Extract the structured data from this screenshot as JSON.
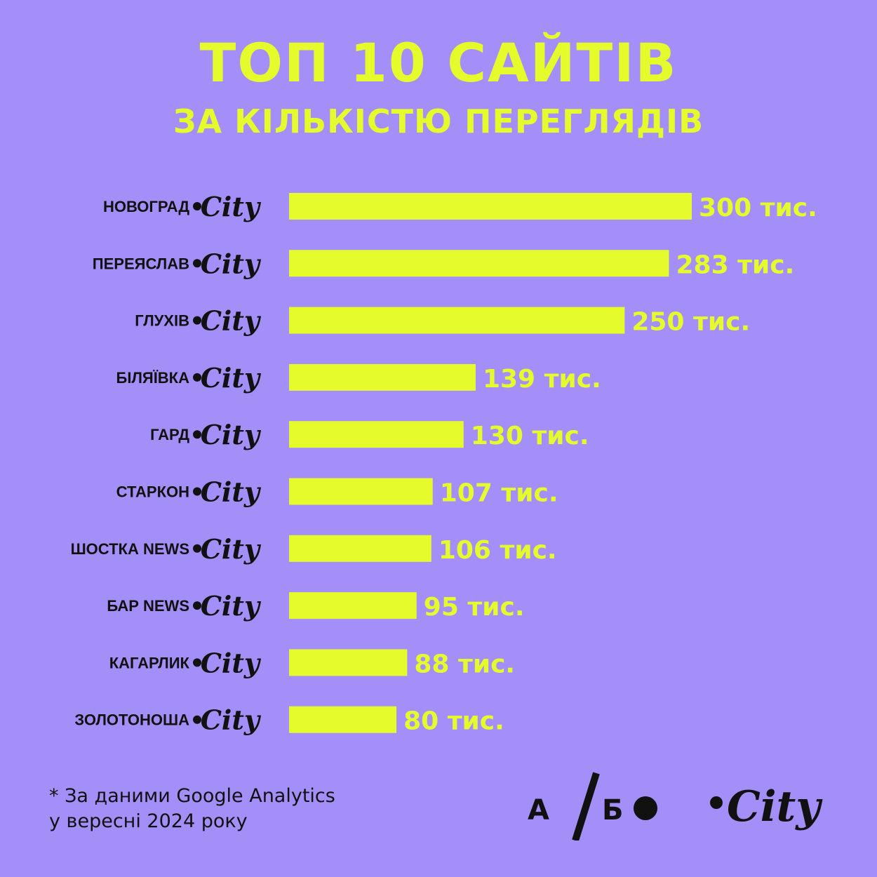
{
  "title": "ТОП 10 САЙТІВ",
  "subtitle": "ЗА КІЛЬКІСТЮ ПЕРЕГЛЯДІВ",
  "footnote": {
    "line1": "* За даними Google Analytics",
    "line2": "у вересні 2024 року"
  },
  "colors": {
    "background": "#A48EF8",
    "accent": "#E6FB2C",
    "text": "#111111"
  },
  "logos": {
    "ab_left": "А",
    "ab_right": "Б",
    "city": "City"
  },
  "chart_data": {
    "type": "bar",
    "orientation": "horizontal",
    "categories": [
      "НОВОГРАД",
      "ПЕРЕЯСЛАВ",
      "ГЛУХІВ",
      "БІЛЯЇВКА",
      "ГАРД",
      "СТАРКОН",
      "ШОСТКА NEWS",
      "БАР NEWS",
      "КАГАРЛИК",
      "ЗОЛОТОНОША"
    ],
    "category_suffix": "City",
    "values": [
      300,
      283,
      250,
      139,
      130,
      107,
      106,
      95,
      88,
      80
    ],
    "value_labels": [
      "300 тис.",
      "283 тис.",
      "250 тис.",
      "139 тис.",
      "130 тис.",
      "107 тис.",
      "106 тис.",
      "95 тис.",
      "88 тис.",
      "80 тис."
    ],
    "xlim": [
      0,
      300
    ],
    "grid": false,
    "bar_color": "#E6FB2C"
  }
}
